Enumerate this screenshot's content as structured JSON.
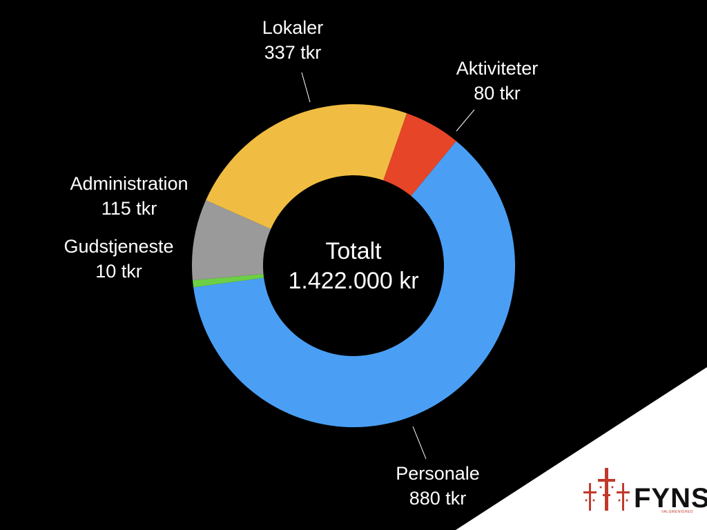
{
  "chart_data": {
    "type": "pie",
    "center_label": {
      "title": "Totalt",
      "value": "1.422.000 kr"
    },
    "slices": [
      {
        "name": "Personale",
        "value": 880,
        "value_label": "880 tkr",
        "color": "#4a9ff5"
      },
      {
        "name": "Gudstjeneste",
        "value": 10,
        "value_label": "10 tkr",
        "color": "#6ccf45"
      },
      {
        "name": "Administration",
        "value": 115,
        "value_label": "115 tkr",
        "color": "#9a9a9a"
      },
      {
        "name": "Lokaler",
        "value": 337,
        "value_label": "337 tkr",
        "color": "#f0bd42"
      },
      {
        "name": "Aktiviteter",
        "value": 80,
        "value_label": "80 tkr",
        "color": "#e64528"
      }
    ],
    "legend": "none"
  },
  "logo": {
    "word": "FYNS",
    "subtitle": "VALGMENIGHED",
    "color": "#c0392b"
  },
  "colors": {
    "background": "#000000",
    "corner": "#ffffff",
    "text": "#ffffff"
  }
}
